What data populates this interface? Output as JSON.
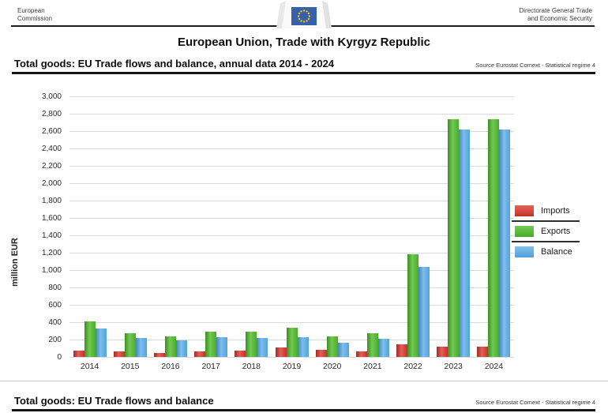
{
  "header": {
    "left": {
      "line1": "European",
      "line2": "Commission"
    },
    "right": {
      "line1": "Directorate General Trade",
      "line2": "and Economic Security"
    },
    "logo_icon": "european-commission-logo",
    "flag_color": "#3761ad",
    "star_color": "#f5c400"
  },
  "title": "European Union, Trade with Kyrgyz Republic",
  "sections": {
    "top": {
      "heading": "Total goods: EU Trade flows and balance, annual data 2014 - 2024",
      "source": "Source Eurostat Comext  - Statistical regime 4"
    },
    "bottom": {
      "heading": "Total goods: EU Trade flows and balance",
      "source": "Source Eurostat Comext  - Statistical regime 4"
    }
  },
  "chart_data": {
    "type": "bar",
    "title": "",
    "xlabel": "",
    "ylabel": "million EUR",
    "ylim": [
      0,
      3000
    ],
    "ytick_step": 200,
    "grid": true,
    "legend_position": "right",
    "categories": [
      "2014",
      "2015",
      "2016",
      "2017",
      "2018",
      "2019",
      "2020",
      "2021",
      "2022",
      "2023",
      "2024"
    ],
    "series": [
      {
        "name": "Imports",
        "color": "#d5342a",
        "values": [
          75,
          60,
          50,
          65,
          75,
          105,
          80,
          65,
          150,
          120,
          115
        ]
      },
      {
        "name": "Exports",
        "color": "#4cb827",
        "values": [
          405,
          275,
          240,
          295,
          295,
          335,
          240,
          275,
          1185,
          2735,
          2735
        ]
      },
      {
        "name": "Balance",
        "color": "#58ace8",
        "values": [
          330,
          215,
          190,
          230,
          220,
          230,
          160,
          210,
          1035,
          2620,
          2620
        ]
      }
    ]
  }
}
